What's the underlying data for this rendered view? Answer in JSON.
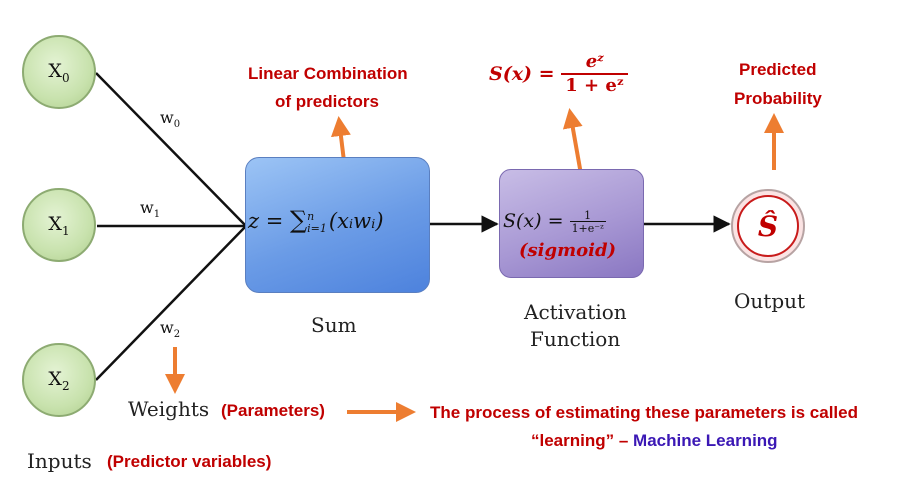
{
  "inputs": {
    "x0": {
      "base": "X",
      "sub": "0"
    },
    "x1": {
      "base": "X",
      "sub": "1"
    },
    "x2": {
      "base": "X",
      "sub": "2"
    }
  },
  "weights": {
    "w0": {
      "base": "w",
      "sub": "0"
    },
    "w1": {
      "base": "w",
      "sub": "1"
    },
    "w2": {
      "base": "w",
      "sub": "2"
    }
  },
  "sum": {
    "formula_lhs": "z = ",
    "formula_sigma": "∑",
    "formula_upper": "n",
    "formula_lower": "i=1",
    "formula_rhs": "(xᵢwᵢ)",
    "label": "Sum"
  },
  "activation": {
    "formula_lhs": "S(x) = ",
    "frac_num": "1",
    "frac_den": "1+e⁻ᶻ",
    "name": "(sigmoid)",
    "label_line1": "Activation",
    "label_line2": "Function"
  },
  "output": {
    "symbol": "Ŝ",
    "label": "Output"
  },
  "annotations": {
    "linear_line1": "Linear Combination",
    "linear_line2": "of predictors",
    "sigmoid_lhs": "S(x) = ",
    "sigmoid_num": "eᶻ",
    "sigmoid_den": "1 + eᶻ",
    "predicted_line1": "Predicted",
    "predicted_line2": "Probability",
    "weights_label": "Weights",
    "parameters": "(Parameters)",
    "learning_line1": "The process of estimating these parameters is called",
    "learning_line2_a": "“learning” – ",
    "learning_line2_b": "Machine Learning",
    "inputs_label": "Inputs",
    "predictor_variables": "(Predictor variables)"
  },
  "colors": {
    "annotation_red": "#c00000",
    "arrow_orange": "#ed7d31",
    "machine_learning_purple": "#3b18b5"
  }
}
